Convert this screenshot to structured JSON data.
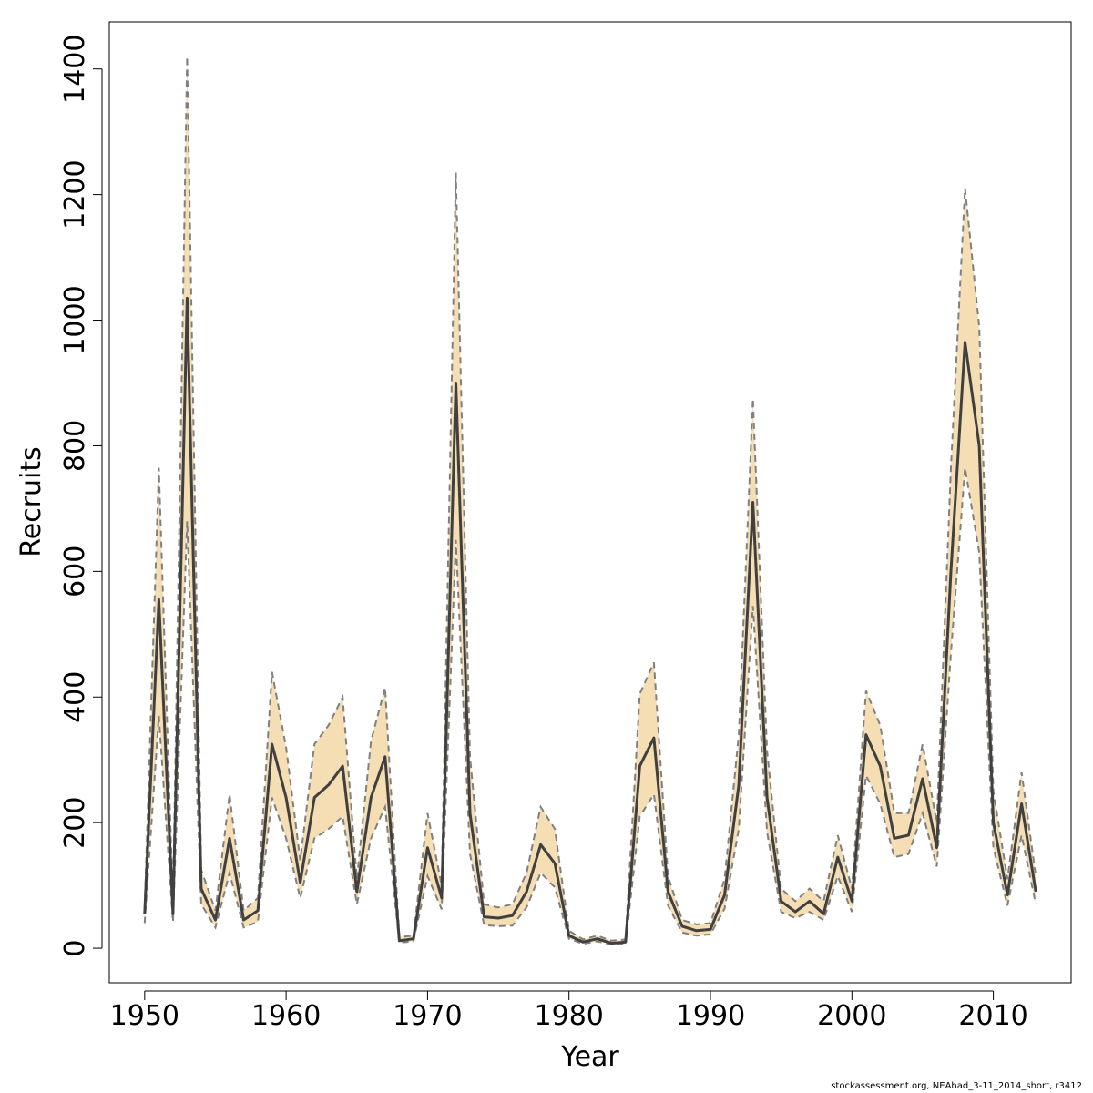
{
  "chart_data": {
    "type": "line",
    "title": "",
    "xlabel": "Year",
    "ylabel": "Recruits",
    "xlim": [
      1947.5,
      2015.5
    ],
    "ylim": [
      -55,
      1475
    ],
    "x_ticks": [
      1950,
      1960,
      1970,
      1980,
      1990,
      2000,
      2010
    ],
    "y_ticks": [
      0,
      200,
      400,
      600,
      800,
      1000,
      1200,
      1400
    ],
    "grid": false,
    "legend": "none",
    "colors": {
      "band_fill": "#f5deb3",
      "band_edge": "#808080",
      "line": "#404040"
    },
    "x": [
      1950,
      1951,
      1952,
      1953,
      1954,
      1955,
      1956,
      1957,
      1958,
      1959,
      1960,
      1961,
      1962,
      1963,
      1964,
      1965,
      1966,
      1967,
      1968,
      1969,
      1970,
      1971,
      1972,
      1973,
      1974,
      1975,
      1976,
      1977,
      1978,
      1979,
      1980,
      1981,
      1982,
      1983,
      1984,
      1985,
      1986,
      1987,
      1988,
      1989,
      1990,
      1991,
      1992,
      1993,
      1994,
      1995,
      1996,
      1997,
      1998,
      1999,
      2000,
      2001,
      2002,
      2003,
      2004,
      2005,
      2006,
      2007,
      2008,
      2009,
      2010,
      2011,
      2012,
      2013
    ],
    "series": [
      {
        "role": "estimate",
        "values": [
          55,
          555,
          55,
          1035,
          95,
          45,
          175,
          45,
          60,
          325,
          240,
          105,
          240,
          260,
          290,
          90,
          240,
          305,
          12,
          15,
          160,
          80,
          900,
          215,
          50,
          48,
          52,
          90,
          165,
          135,
          20,
          10,
          15,
          8,
          10,
          290,
          335,
          90,
          35,
          28,
          30,
          85,
          260,
          710,
          240,
          75,
          58,
          75,
          55,
          145,
          75,
          340,
          290,
          175,
          180,
          270,
          160,
          600,
          965,
          800,
          200,
          85,
          230,
          90
        ]
      },
      {
        "role": "upper",
        "values": [
          65,
          765,
          70,
          1420,
          125,
          60,
          245,
          60,
          80,
          440,
          320,
          140,
          325,
          355,
          400,
          110,
          330,
          415,
          18,
          20,
          215,
          100,
          1235,
          305,
          70,
          65,
          70,
          120,
          225,
          190,
          28,
          14,
          20,
          12,
          14,
          405,
          455,
          115,
          45,
          38,
          40,
          110,
          340,
          875,
          315,
          95,
          75,
          95,
          75,
          180,
          95,
          410,
          355,
          215,
          215,
          325,
          200,
          765,
          1210,
          990,
          250,
          110,
          280,
          115
        ]
      },
      {
        "role": "lower",
        "values": [
          40,
          370,
          42,
          680,
          70,
          33,
          120,
          33,
          42,
          240,
          175,
          80,
          175,
          190,
          210,
          70,
          175,
          225,
          9,
          11,
          115,
          62,
          650,
          150,
          37,
          35,
          36,
          65,
          120,
          97,
          15,
          7,
          11,
          6,
          7,
          210,
          245,
          68,
          25,
          20,
          22,
          63,
          190,
          545,
          185,
          58,
          48,
          58,
          45,
          115,
          58,
          275,
          230,
          145,
          150,
          215,
          130,
          470,
          765,
          630,
          160,
          68,
          180,
          70
        ]
      }
    ]
  },
  "footer_text": "stockassessment.org, NEAhad_3-11_2014_short, r3412"
}
